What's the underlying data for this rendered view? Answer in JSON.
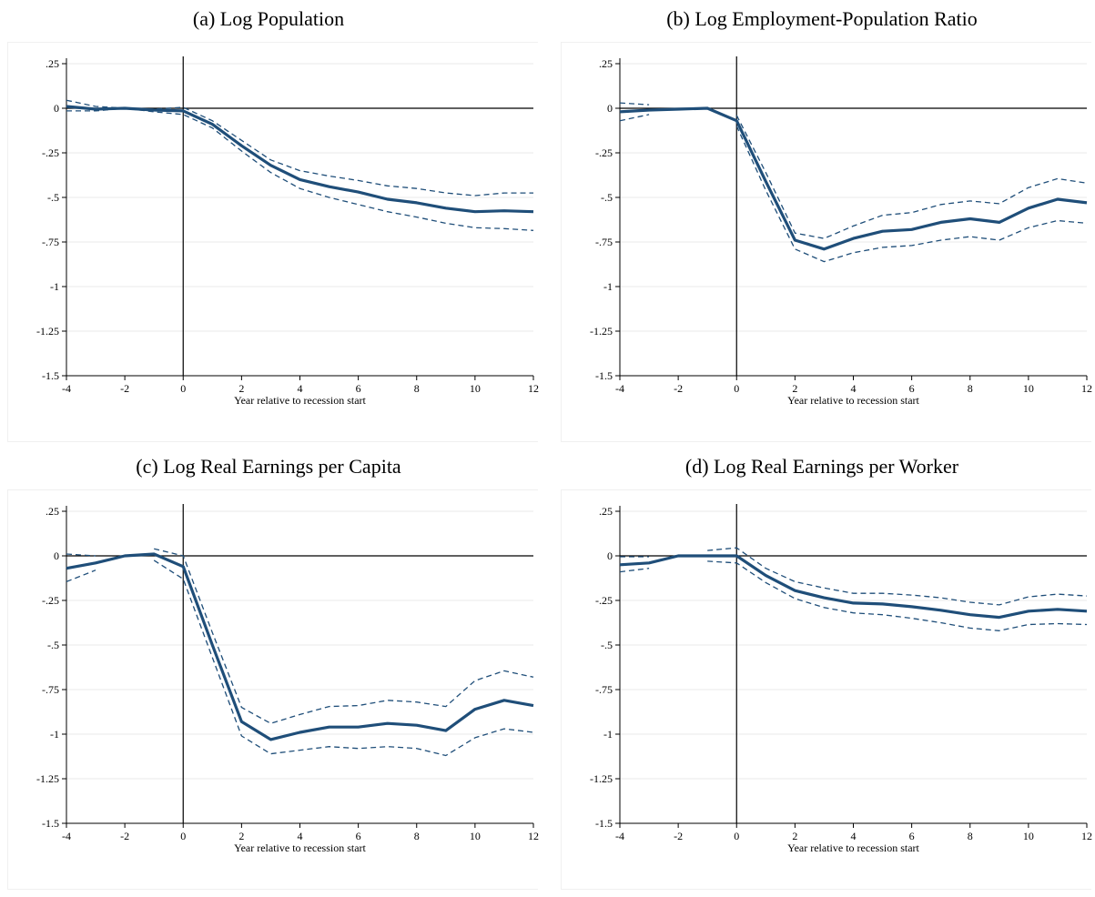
{
  "chart_data": [
    {
      "type": "line",
      "title": "(a) Log Population",
      "xlabel": "Year relative to recession start",
      "ylabel": "",
      "xlim": [
        -4,
        12
      ],
      "ylim": [
        -1.5,
        0.25
      ],
      "xticks": [
        -4,
        -2,
        0,
        2,
        4,
        6,
        8,
        10,
        12
      ],
      "xtick_labels": [
        "-4",
        "-2",
        "0",
        "2",
        "4",
        "6",
        "8",
        "10",
        "12"
      ],
      "yticks": [
        0.25,
        0,
        -0.25,
        -0.5,
        -0.75,
        -1,
        -1.25,
        -1.5
      ],
      "ytick_labels": [
        ".25",
        "0",
        "-.25",
        "-.5",
        "-.75",
        "-1",
        "-1.25",
        "-1.5"
      ],
      "grid": true,
      "x": [
        -4,
        -3,
        -2,
        -1,
        0,
        1,
        2,
        3,
        4,
        5,
        6,
        7,
        8,
        9,
        10,
        11,
        12
      ],
      "series": [
        {
          "role": "estimate",
          "values": [
            0.01,
            -0.005,
            0,
            -0.01,
            -0.015,
            -0.09,
            -0.21,
            -0.32,
            -0.4,
            -0.44,
            -0.47,
            -0.51,
            -0.53,
            -0.56,
            -0.58,
            -0.575,
            -0.58
          ]
        },
        {
          "role": "upper-ci",
          "values": [
            0.045,
            0.01,
            0,
            -0.005,
            0.005,
            -0.07,
            -0.18,
            -0.29,
            -0.35,
            -0.38,
            -0.405,
            -0.435,
            -0.45,
            -0.475,
            -0.49,
            -0.475,
            -0.475
          ]
        },
        {
          "role": "lower-ci",
          "values": [
            -0.015,
            -0.015,
            0,
            -0.02,
            -0.035,
            -0.11,
            -0.24,
            -0.36,
            -0.45,
            -0.5,
            -0.54,
            -0.58,
            -0.61,
            -0.645,
            -0.67,
            -0.675,
            -0.685
          ]
        }
      ]
    },
    {
      "type": "line",
      "title": "(b) Log Employment-Population Ratio",
      "xlabel": "Year relative to recession start",
      "ylabel": "",
      "xlim": [
        -4,
        12
      ],
      "ylim": [
        -1.5,
        0.25
      ],
      "xticks": [
        -4,
        -2,
        0,
        2,
        4,
        6,
        8,
        10,
        12
      ],
      "xtick_labels": [
        "-4",
        "-2",
        "0",
        "2",
        "4",
        "6",
        "8",
        "10",
        "12"
      ],
      "yticks": [
        0.25,
        0,
        -0.25,
        -0.5,
        -0.75,
        -1,
        -1.25,
        -1.5
      ],
      "ytick_labels": [
        ".25",
        "0",
        "-.25",
        "-.5",
        "-.75",
        "-1",
        "-1.25",
        "-1.5"
      ],
      "grid": true,
      "x": [
        -4,
        -3,
        -2,
        -1,
        0,
        1,
        2,
        3,
        4,
        5,
        6,
        7,
        8,
        9,
        10,
        11,
        12
      ],
      "series": [
        {
          "role": "estimate",
          "values": [
            -0.02,
            -0.01,
            -0.005,
            0,
            -0.07,
            -0.41,
            -0.74,
            -0.79,
            -0.73,
            -0.69,
            -0.68,
            -0.64,
            -0.62,
            -0.64,
            -0.56,
            -0.51,
            -0.53
          ]
        },
        {
          "role": "upper-ci",
          "values": [
            0.03,
            0.02,
            null,
            null,
            -0.04,
            -0.36,
            -0.7,
            -0.73,
            -0.66,
            -0.6,
            -0.585,
            -0.54,
            -0.52,
            -0.535,
            -0.445,
            -0.395,
            -0.42
          ]
        },
        {
          "role": "lower-ci",
          "values": [
            -0.07,
            -0.035,
            null,
            null,
            -0.1,
            -0.46,
            -0.79,
            -0.86,
            -0.81,
            -0.78,
            -0.77,
            -0.74,
            -0.72,
            -0.74,
            -0.67,
            -0.63,
            -0.645
          ]
        }
      ]
    },
    {
      "type": "line",
      "title": "(c) Log Real Earnings per Capita",
      "xlabel": "Year relative to recession start",
      "ylabel": "",
      "xlim": [
        -4,
        12
      ],
      "ylim": [
        -1.5,
        0.25
      ],
      "xticks": [
        -4,
        -2,
        0,
        2,
        4,
        6,
        8,
        10,
        12
      ],
      "xtick_labels": [
        "-4",
        "-2",
        "0",
        "2",
        "4",
        "6",
        "8",
        "10",
        "12"
      ],
      "yticks": [
        0.25,
        0,
        -0.25,
        -0.5,
        -0.75,
        -1,
        -1.25,
        -1.5
      ],
      "ytick_labels": [
        ".25",
        "0",
        "-.25",
        "-.5",
        "-.75",
        "-1",
        "-1.25",
        "-1.5"
      ],
      "grid": true,
      "x": [
        -4,
        -3,
        -2,
        -1,
        0,
        1,
        2,
        3,
        4,
        5,
        6,
        7,
        8,
        9,
        10,
        11,
        12
      ],
      "series": [
        {
          "role": "estimate",
          "values": [
            -0.07,
            -0.04,
            0,
            0.01,
            -0.06,
            -0.5,
            -0.93,
            -1.03,
            -0.99,
            -0.96,
            -0.96,
            -0.94,
            -0.95,
            -0.98,
            -0.86,
            -0.81,
            -0.84
          ]
        },
        {
          "role": "upper-ci",
          "values": [
            0.01,
            0.0,
            null,
            0.04,
            0.0,
            -0.43,
            -0.85,
            -0.94,
            -0.89,
            -0.845,
            -0.84,
            -0.81,
            -0.82,
            -0.845,
            -0.7,
            -0.645,
            -0.68
          ]
        },
        {
          "role": "lower-ci",
          "values": [
            -0.145,
            -0.08,
            null,
            -0.025,
            -0.13,
            -0.57,
            -1.01,
            -1.11,
            -1.09,
            -1.07,
            -1.08,
            -1.07,
            -1.08,
            -1.12,
            -1.02,
            -0.97,
            -0.99
          ]
        }
      ]
    },
    {
      "type": "line",
      "title": "(d) Log Real Earnings per Worker",
      "xlabel": "Year relative to recession start",
      "ylabel": "",
      "xlim": [
        -4,
        12
      ],
      "ylim": [
        -1.5,
        0.25
      ],
      "xticks": [
        -4,
        -2,
        0,
        2,
        4,
        6,
        8,
        10,
        12
      ],
      "xtick_labels": [
        "-4",
        "-2",
        "0",
        "2",
        "4",
        "6",
        "8",
        "10",
        "12"
      ],
      "yticks": [
        0.25,
        0,
        -0.25,
        -0.5,
        -0.75,
        -1,
        -1.25,
        -1.5
      ],
      "ytick_labels": [
        ".25",
        "0",
        "-.25",
        "-.5",
        "-.75",
        "-1",
        "-1.25",
        "-1.5"
      ],
      "grid": true,
      "x": [
        -4,
        -3,
        -2,
        -1,
        0,
        1,
        2,
        3,
        4,
        5,
        6,
        7,
        8,
        9,
        10,
        11,
        12
      ],
      "series": [
        {
          "role": "estimate",
          "values": [
            -0.05,
            -0.04,
            0,
            0,
            0,
            -0.11,
            -0.195,
            -0.235,
            -0.265,
            -0.27,
            -0.285,
            -0.305,
            -0.33,
            -0.345,
            -0.31,
            -0.3,
            -0.31
          ]
        },
        {
          "role": "upper-ci",
          "values": [
            -0.005,
            -0.005,
            null,
            0.03,
            0.045,
            -0.07,
            -0.145,
            -0.18,
            -0.21,
            -0.21,
            -0.22,
            -0.235,
            -0.26,
            -0.275,
            -0.23,
            -0.215,
            -0.225
          ]
        },
        {
          "role": "lower-ci",
          "values": [
            -0.09,
            -0.07,
            null,
            -0.03,
            -0.04,
            -0.15,
            -0.24,
            -0.29,
            -0.32,
            -0.33,
            -0.35,
            -0.375,
            -0.405,
            -0.42,
            -0.385,
            -0.38,
            -0.385
          ]
        }
      ]
    }
  ],
  "style": {
    "estimate_color": "#1f4e79",
    "ci_color": "#1f4e79",
    "grid_color": "#eaeaea",
    "axis_color": "#000000"
  }
}
